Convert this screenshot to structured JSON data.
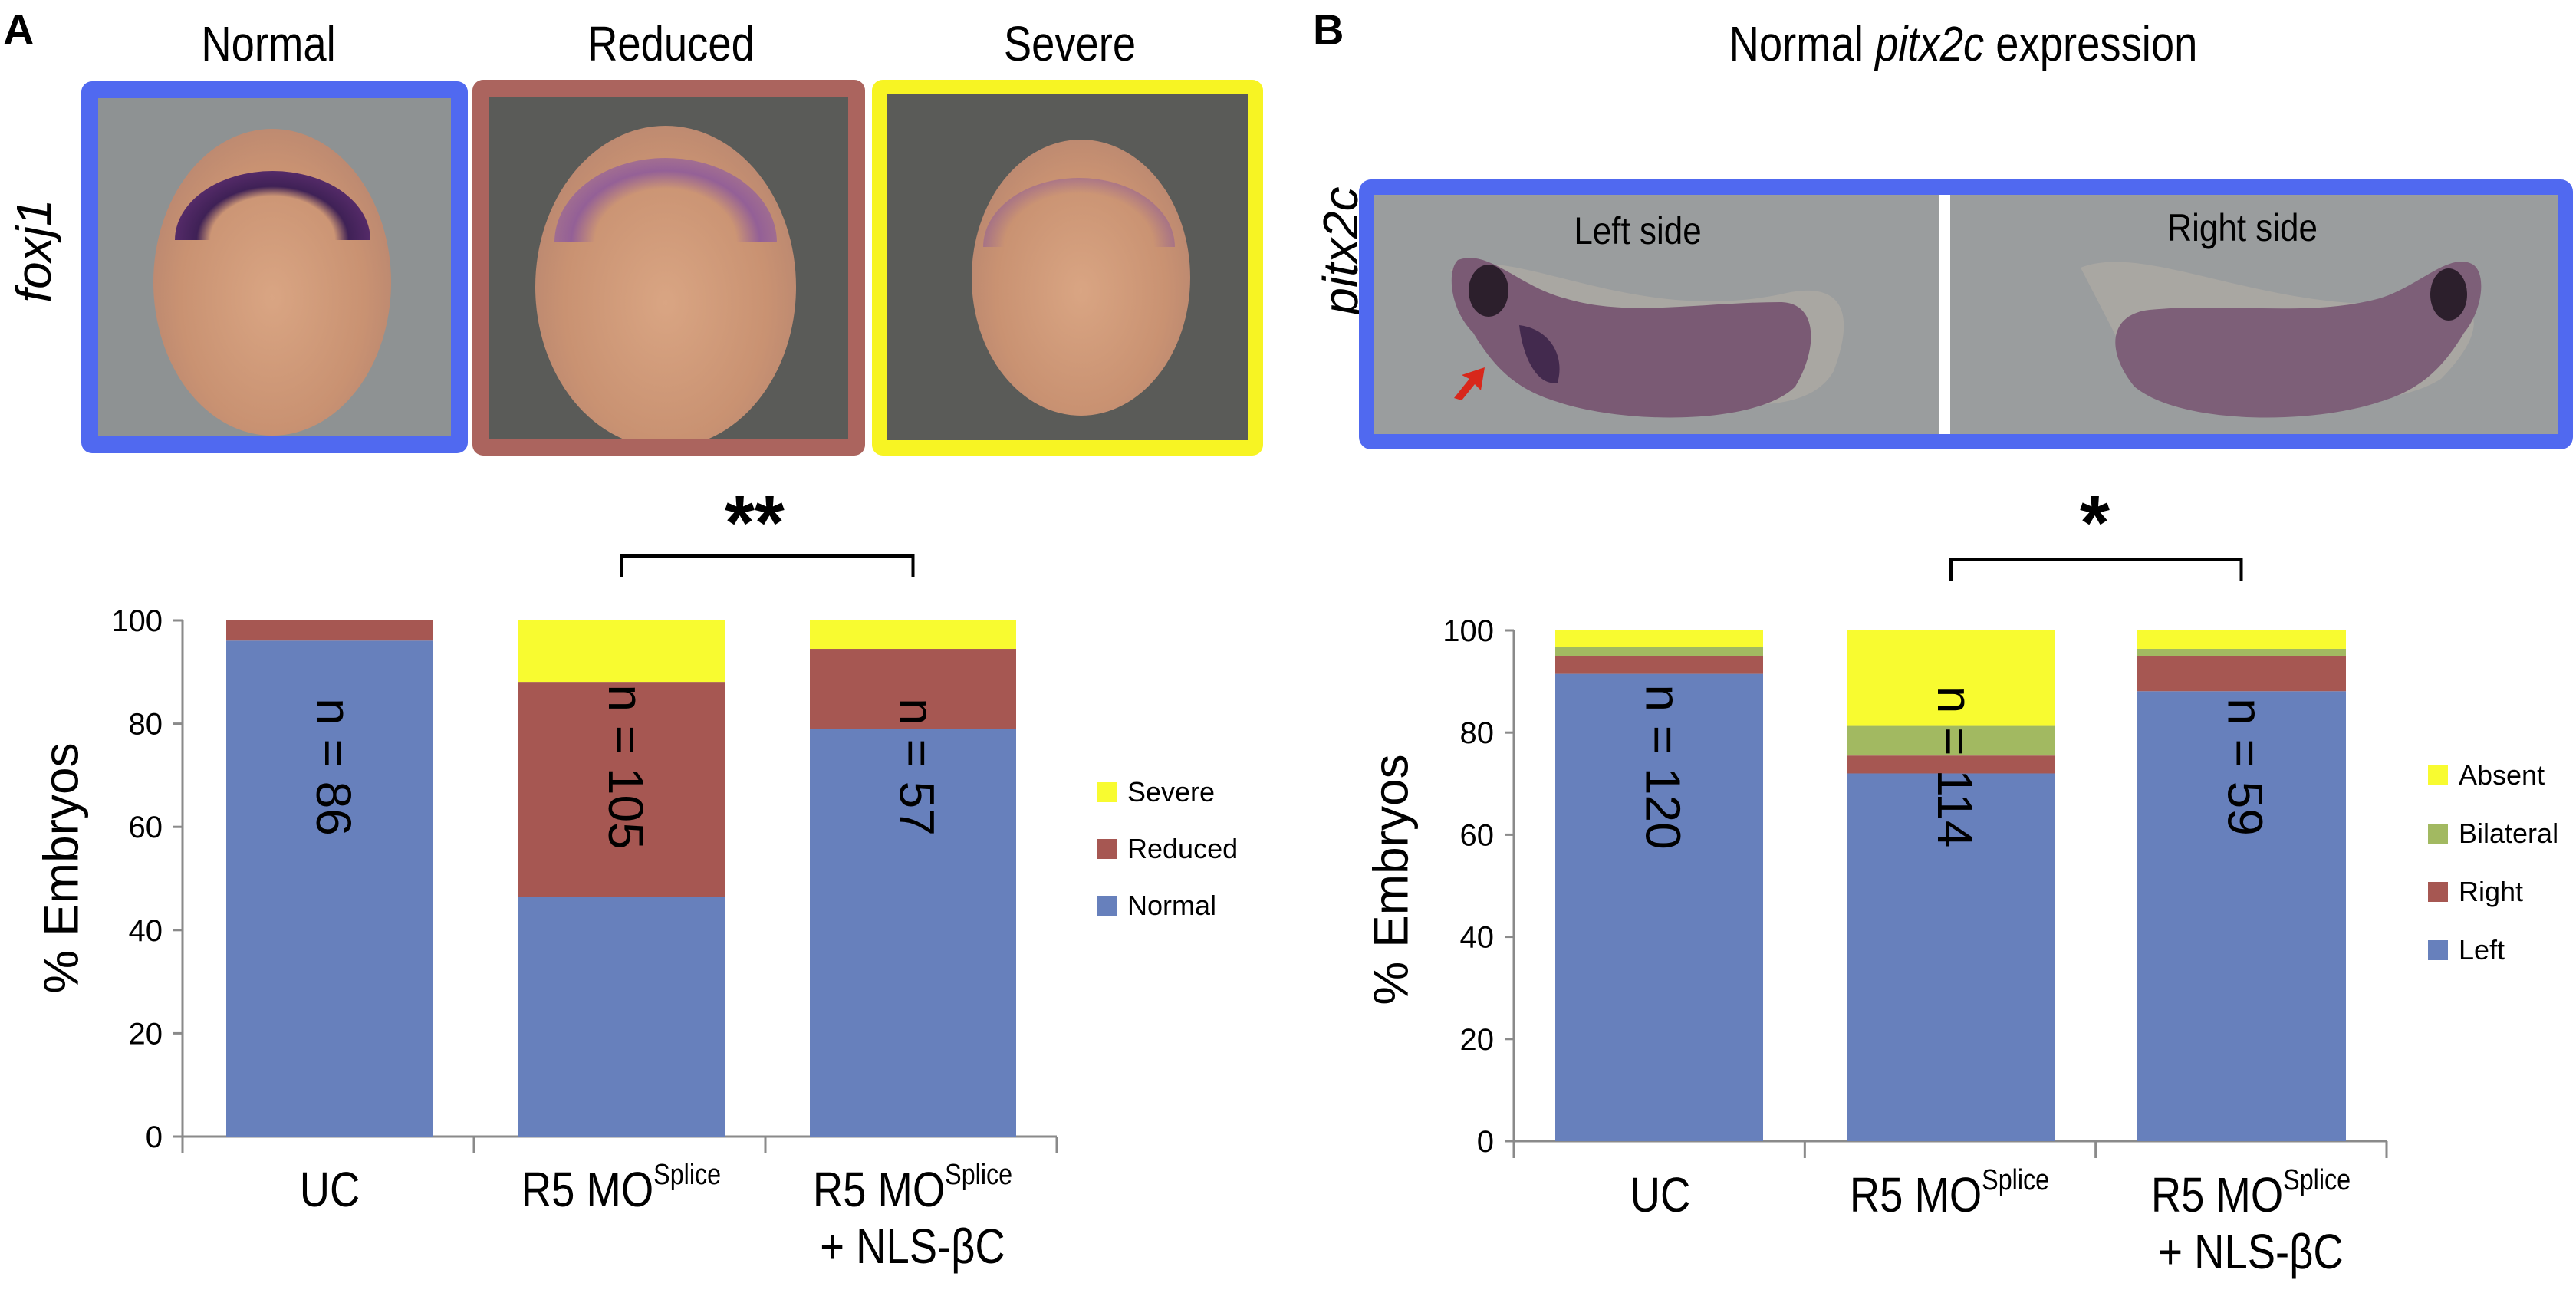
{
  "panel_a": {
    "letter": "A",
    "image_titles": [
      "Normal",
      "Reduced",
      "Severe"
    ],
    "gene_label": "foxj1",
    "frame_colors": [
      "#5069f0",
      "#ab645e",
      "#f7f423"
    ],
    "significance": "**"
  },
  "panel_b": {
    "letter": "B",
    "title_prefix": "Normal ",
    "title_gene": "pitx2c",
    "title_suffix": " expression",
    "gene_label": "pitx2c",
    "frame_color": "#5069f0",
    "side_labels": [
      "Left side",
      "Right side"
    ],
    "arrow_color": "#d8271b",
    "significance": "*"
  },
  "chart_data": [
    {
      "type": "bar",
      "stacked": true,
      "title": "",
      "xlabel": "",
      "ylabel": "% Embryos",
      "ylim": [
        0,
        100
      ],
      "yticks": [
        0,
        20,
        40,
        60,
        80,
        100
      ],
      "categories": [
        {
          "main": "UC",
          "sup": "",
          "line2": ""
        },
        {
          "main": "R5 MO",
          "sup": "Splice",
          "line2": ""
        },
        {
          "main": "R5 MO",
          "sup": "Splice",
          "line2": "+ NLS-βC"
        }
      ],
      "n_labels": [
        "n = 86",
        "n = 105",
        "n = 57"
      ],
      "series": [
        {
          "name": "Normal",
          "color": "#6780bc",
          "values": [
            96.1,
            46.5,
            78.9
          ]
        },
        {
          "name": "Reduced",
          "color": "#a65752",
          "values": [
            3.9,
            41.6,
            15.6
          ]
        },
        {
          "name": "Severe",
          "color": "#f8fb30",
          "values": [
            0.0,
            11.9,
            5.5
          ]
        }
      ],
      "legend": {
        "position": "right",
        "order": [
          "Severe",
          "Reduced",
          "Normal"
        ]
      },
      "grid": false,
      "significance": {
        "label": "**",
        "between": [
          1,
          2
        ]
      }
    },
    {
      "type": "bar",
      "stacked": true,
      "title": "",
      "xlabel": "",
      "ylabel": "% Embryos",
      "ylim": [
        0,
        100
      ],
      "yticks": [
        0,
        20,
        40,
        60,
        80,
        100
      ],
      "categories": [
        {
          "main": "UC",
          "sup": "",
          "line2": ""
        },
        {
          "main": "R5 MO",
          "sup": "Splice",
          "line2": ""
        },
        {
          "main": "R5 MO",
          "sup": "Splice",
          "line2": "+ NLS-βC"
        }
      ],
      "n_labels": [
        "n = 120",
        "n = 114",
        "n = 59"
      ],
      "series": [
        {
          "name": "Left",
          "color": "#6780bc",
          "values": [
            91.5,
            72.0,
            88.1
          ]
        },
        {
          "name": "Right",
          "color": "#a65752",
          "values": [
            3.5,
            3.5,
            6.8
          ]
        },
        {
          "name": "Bilateral",
          "color": "#a2b961",
          "values": [
            1.8,
            5.8,
            1.5
          ]
        },
        {
          "name": "Absent",
          "color": "#f8fb30",
          "values": [
            3.2,
            18.7,
            3.6
          ]
        }
      ],
      "legend": {
        "position": "right",
        "order": [
          "Absent",
          "Bilateral",
          "Right",
          "Left"
        ]
      },
      "grid": false,
      "significance": {
        "label": "*",
        "between": [
          1,
          2
        ]
      }
    }
  ]
}
